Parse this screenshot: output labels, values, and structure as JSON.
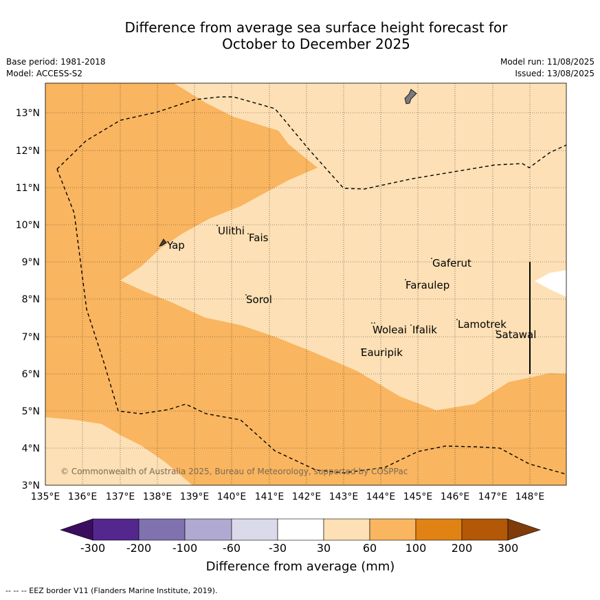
{
  "title": {
    "line1": "Difference from average sea surface height forecast for",
    "line2": "October to December 2025"
  },
  "meta": {
    "base_period": "Base period: 1981-2018",
    "model": "Model: ACCESS-S2",
    "model_run": "Model run: 11/08/2025",
    "issued": "Issued: 13/08/2025"
  },
  "map": {
    "lon_range": [
      135,
      149
    ],
    "lat_range": [
      3,
      13.8
    ],
    "lon_ticks": [
      "135°E",
      "136°E",
      "137°E",
      "138°E",
      "139°E",
      "140°E",
      "141°E",
      "142°E",
      "143°E",
      "144°E",
      "145°E",
      "146°E",
      "147°E",
      "148°E"
    ],
    "lat_ticks": [
      "3°N",
      "4°N",
      "5°N",
      "6°N",
      "7°N",
      "8°N",
      "9°N",
      "10°N",
      "11°N",
      "12°N",
      "13°N"
    ],
    "places": [
      {
        "name": "Yap"
      },
      {
        "name": "Ulithi"
      },
      {
        "name": "Fais"
      },
      {
        "name": "Gaferut"
      },
      {
        "name": "Faraulep"
      },
      {
        "name": "Sorol"
      },
      {
        "name": "Woleai"
      },
      {
        "name": "Ifalik"
      },
      {
        "name": "Lamotrek"
      },
      {
        "name": "Satawal"
      },
      {
        "name": "Eauripik"
      }
    ],
    "copyright": "© Commonwealth of Australia 2025, Bureau of Meteorology, supported by COSPPac",
    "colors": {
      "band_30_60": "#fde0b5",
      "band_60_100": "#f9b55f",
      "land": "#7a7a7a"
    }
  },
  "colorbar": {
    "label": "Difference from average (mm)",
    "ticks": [
      "-300",
      "-200",
      "-100",
      "-60",
      "-30",
      "30",
      "60",
      "100",
      "200",
      "300"
    ],
    "colors": [
      "#3b0d5e",
      "#54278f",
      "#7f72ae",
      "#b0a9d1",
      "#dadaeb",
      "#ffffff",
      "#fde0b5",
      "#f9b55f",
      "#e08214",
      "#b35806",
      "#7f3b08"
    ]
  },
  "footer": {
    "legend_note": "--  --  -- EEZ border V11 (Flanders Marine Institute, 2019)."
  }
}
